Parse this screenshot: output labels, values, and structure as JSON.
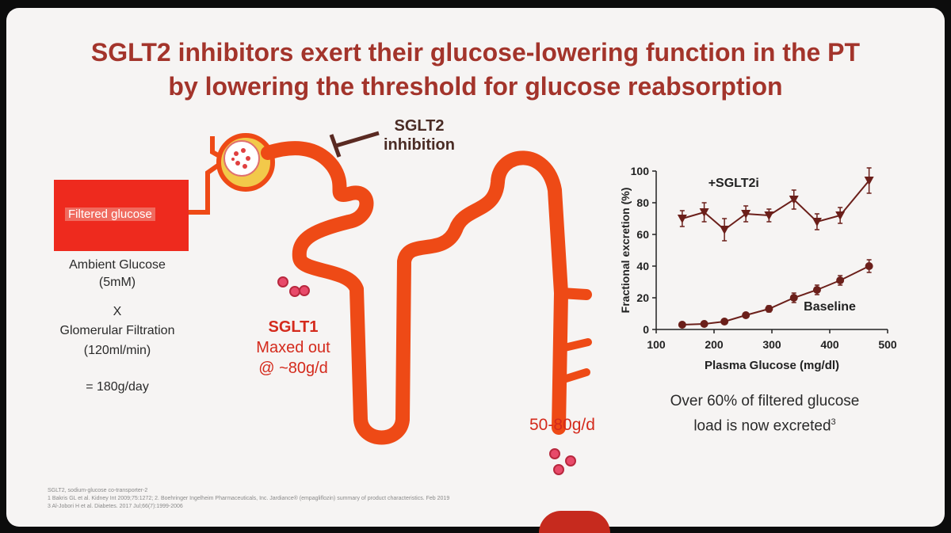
{
  "title": {
    "line1": "SGLT2 inhibitors exert their glucose-lowering function in the PT",
    "line2": "by lowering the threshold for glucose reabsorption"
  },
  "inhibition": {
    "line1": "SGLT2",
    "line2": "inhibition"
  },
  "left": {
    "box_label": "Filtered glucose",
    "ambient": "Ambient Glucose",
    "ambient_value": "(5mM)",
    "times": "X",
    "gfr": "Glomerular Filtration",
    "gfr_value": "(120ml/min)",
    "result": "=  180g/day"
  },
  "sglt1": {
    "line1": "SGLT1",
    "line2": "Maxed out",
    "line3": "@ ~80g/d"
  },
  "excretion_label": "50-80g/d",
  "chart_data": {
    "type": "line",
    "xlabel": "Plasma Glucose (mg/dl)",
    "ylabel": "Fractional excretion (%)",
    "xlim": [
      100,
      500
    ],
    "ylim": [
      0,
      100
    ],
    "xticks": [
      100,
      200,
      300,
      400,
      500
    ],
    "yticks": [
      0,
      20,
      40,
      60,
      80,
      100
    ],
    "series": [
      {
        "name": "+SGLT2i",
        "marker": "triangle-down",
        "x": [
          145,
          183,
          218,
          255,
          295,
          338,
          378,
          418,
          468
        ],
        "y": [
          70,
          74,
          63,
          73,
          72,
          82,
          68,
          72,
          94
        ],
        "err": [
          5,
          6,
          7,
          5,
          4,
          6,
          5,
          5,
          8
        ]
      },
      {
        "name": "Baseline",
        "marker": "circle",
        "x": [
          145,
          183,
          218,
          255,
          295,
          338,
          378,
          418,
          468
        ],
        "y": [
          3,
          3.5,
          5,
          9,
          13,
          20,
          25,
          31,
          40
        ],
        "err": [
          1,
          1,
          1,
          1.5,
          2,
          3,
          3,
          3,
          4
        ]
      }
    ],
    "color": "#6b1f1a"
  },
  "caption": {
    "line1": "Over 60% of filtered glucose",
    "line2": "load is now excreted",
    "sup": "3"
  },
  "references": {
    "line1": "SGLT2, sodium-glucose co-transporter-2",
    "line2": "1    Bakris GL et al. Kidney Int 2009;75:1272; 2. Boehringer Ingelheim Pharmaceuticals, Inc. Jardiance® (empagliflozin) summary of product characteristics. Feb 2019",
    "line3": "3    Al-Jobori H et al. Diabetes. 2017 Jul;66(7):1999-2006"
  },
  "colors": {
    "tubule": "#ee4a16",
    "title": "#a3342b",
    "accent_red": "#d42a1c"
  }
}
